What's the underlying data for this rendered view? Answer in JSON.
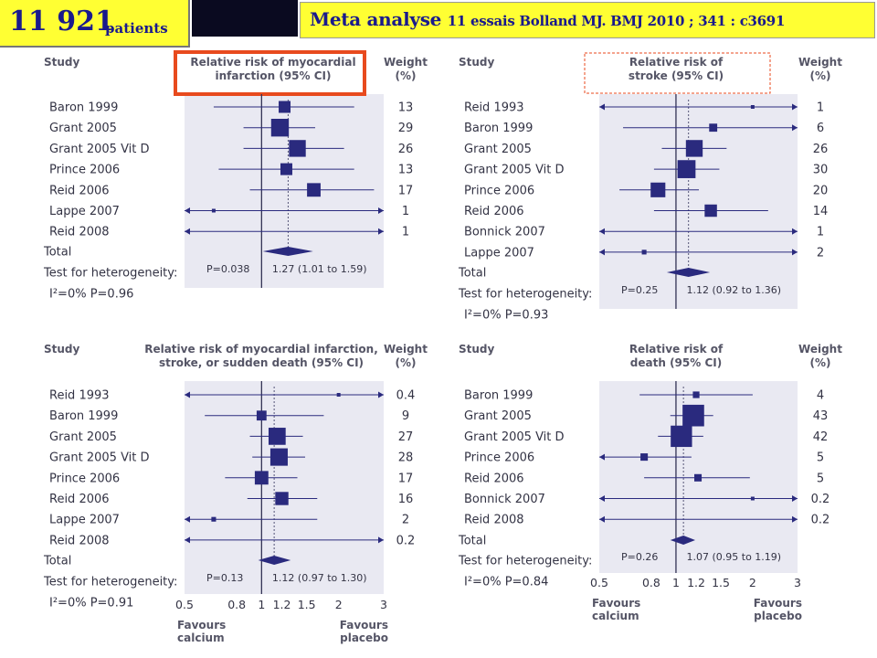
{
  "header": {
    "patient_count": "11 921",
    "patient_label": "patients",
    "reference_main": "Meta analyse",
    "reference_detail": "11 essais  Bolland MJ.   BMJ 2010 ; 341 : c3691"
  },
  "colors": {
    "marker": "#2a2a7e",
    "panel_bg": "#e9e9f2",
    "highlight_red": "#e84a1e",
    "header_yellow": "#ffff33",
    "header_text": "#1a1a8c"
  },
  "chart_data": [
    {
      "type": "forest",
      "study_header": "Study",
      "title_line1": "Relative risk of myocardial",
      "title_line2": "infarction (95% CI)",
      "weight_header_line1": "Weight",
      "weight_header_line2": "(%)",
      "highlight": "solid-red",
      "studies": [
        {
          "name": "Baron 1999",
          "rr": 1.23,
          "lo": 0.65,
          "hi": 2.3,
          "weight": "13"
        },
        {
          "name": "Grant 2005",
          "rr": 1.18,
          "lo": 0.85,
          "hi": 1.62,
          "weight": "29"
        },
        {
          "name": "Grant 2005 Vit D",
          "rr": 1.38,
          "lo": 0.85,
          "hi": 2.1,
          "weight": "26"
        },
        {
          "name": "Prince 2006",
          "rr": 1.25,
          "lo": 0.68,
          "hi": 2.3,
          "weight": "13"
        },
        {
          "name": "Reid 2006",
          "rr": 1.6,
          "lo": 0.9,
          "hi": 2.75,
          "weight": "17"
        },
        {
          "name": "Lappe 2007",
          "rr": 0.65,
          "lo": 0.5,
          "hi": 3.0,
          "weight": "1",
          "arrow_left": true,
          "arrow_right": true
        },
        {
          "name": "Reid 2008",
          "rr": null,
          "lo": 0.5,
          "hi": 3.0,
          "weight": "1",
          "arrow_left": true,
          "arrow_right": true
        }
      ],
      "total": {
        "rr": 1.27,
        "lo": 1.01,
        "hi": 1.59
      },
      "total_label": "Total",
      "heterogeneity_label": "Test for heterogeneity:",
      "i2": "I²=0% P=0.96",
      "p_overall": "P=0.038",
      "estimate_text": "1.27 (1.01 to 1.59)",
      "xscale": "log",
      "xlim": [
        0.5,
        3
      ]
    },
    {
      "type": "forest",
      "study_header": "Study",
      "title_line1": "Relative risk of",
      "title_line2": "stroke (95% CI)",
      "weight_header_line1": "Weight",
      "weight_header_line2": "(%)",
      "highlight": "dashed-red",
      "studies": [
        {
          "name": "Reid 1993",
          "rr": 2.0,
          "lo": 0.5,
          "hi": 3.0,
          "weight": "1",
          "arrow_left": true,
          "arrow_right": true
        },
        {
          "name": "Baron 1999",
          "rr": 1.4,
          "lo": 0.62,
          "hi": 3.0,
          "weight": "6",
          "arrow_right": true
        },
        {
          "name": "Grant 2005",
          "rr": 1.18,
          "lo": 0.88,
          "hi": 1.58,
          "weight": "26"
        },
        {
          "name": "Grant 2005 Vit D",
          "rr": 1.1,
          "lo": 0.82,
          "hi": 1.48,
          "weight": "30"
        },
        {
          "name": "Prince 2006",
          "rr": 0.85,
          "lo": 0.6,
          "hi": 1.23,
          "weight": "20"
        },
        {
          "name": "Reid 2006",
          "rr": 1.37,
          "lo": 0.82,
          "hi": 2.3,
          "weight": "14"
        },
        {
          "name": "Bonnick 2007",
          "rr": null,
          "lo": 0.5,
          "hi": 3.0,
          "weight": "1",
          "arrow_left": true,
          "arrow_right": true
        },
        {
          "name": "Lappe 2007",
          "rr": 0.75,
          "lo": 0.5,
          "hi": 3.0,
          "weight": "2",
          "arrow_left": true,
          "arrow_right": true
        }
      ],
      "total": {
        "rr": 1.12,
        "lo": 0.92,
        "hi": 1.36
      },
      "total_label": "Total",
      "heterogeneity_label": "Test for heterogeneity:",
      "i2": "I²=0% P=0.93",
      "p_overall": "P=0.25",
      "estimate_text": "1.12 (0.92 to 1.36)",
      "xscale": "log",
      "xlim": [
        0.5,
        3
      ]
    },
    {
      "type": "forest",
      "study_header": "Study",
      "title_line1": "Relative risk of myocardial infarction,",
      "title_line2": "stroke, or sudden death (95% CI)",
      "weight_header_line1": "Weight",
      "weight_header_line2": "(%)",
      "highlight": "none",
      "studies": [
        {
          "name": "Reid 1993",
          "rr": 2.0,
          "lo": 0.5,
          "hi": 3.0,
          "weight": "0.4",
          "arrow_left": true,
          "arrow_right": true
        },
        {
          "name": "Baron 1999",
          "rr": 1.0,
          "lo": 0.6,
          "hi": 1.75,
          "weight": "9"
        },
        {
          "name": "Grant 2005",
          "rr": 1.15,
          "lo": 0.9,
          "hi": 1.45,
          "weight": "27"
        },
        {
          "name": "Grant 2005 Vit D",
          "rr": 1.17,
          "lo": 0.92,
          "hi": 1.48,
          "weight": "28"
        },
        {
          "name": "Prince 2006",
          "rr": 1.0,
          "lo": 0.72,
          "hi": 1.38,
          "weight": "17"
        },
        {
          "name": "Reid 2006",
          "rr": 1.2,
          "lo": 0.88,
          "hi": 1.65,
          "weight": "16"
        },
        {
          "name": "Lappe 2007",
          "rr": 0.65,
          "lo": 0.5,
          "hi": 1.65,
          "weight": "2",
          "arrow_left": true
        },
        {
          "name": "Reid 2008",
          "rr": null,
          "lo": 0.5,
          "hi": 3.0,
          "weight": "0.2",
          "arrow_left": true,
          "arrow_right": true
        }
      ],
      "total": {
        "rr": 1.12,
        "lo": 0.97,
        "hi": 1.3
      },
      "total_label": "Total",
      "heterogeneity_label": "Test for heterogeneity:",
      "i2": "I²=0% P=0.91",
      "p_overall": "P=0.13",
      "estimate_text": "1.12 (0.97 to 1.30)",
      "xscale": "log",
      "xlim": [
        0.5,
        3
      ],
      "ticks": [
        "0.5",
        "0.8",
        "1",
        "1.2",
        "1.5",
        "2",
        "3"
      ],
      "tick_values": [
        0.5,
        0.8,
        1,
        1.2,
        1.5,
        2,
        3
      ],
      "favours_left": [
        "Favours",
        "calcium"
      ],
      "favours_right": [
        "Favours",
        "placebo"
      ]
    },
    {
      "type": "forest",
      "study_header": "Study",
      "title_line1": "Relative risk of",
      "title_line2": "death (95% CI)",
      "weight_header_line1": "Weight",
      "weight_header_line2": "(%)",
      "highlight": "none",
      "studies": [
        {
          "name": "Baron 1999",
          "rr": 1.2,
          "lo": 0.72,
          "hi": 2.0,
          "weight": "4"
        },
        {
          "name": "Grant 2005",
          "rr": 1.17,
          "lo": 0.95,
          "hi": 1.4,
          "weight": "43"
        },
        {
          "name": "Grant 2005 Vit D",
          "rr": 1.05,
          "lo": 0.85,
          "hi": 1.28,
          "weight": "42"
        },
        {
          "name": "Prince 2006",
          "rr": 0.75,
          "lo": 0.5,
          "hi": 1.15,
          "weight": "5",
          "arrow_left": true
        },
        {
          "name": "Reid 2006",
          "rr": 1.22,
          "lo": 0.75,
          "hi": 1.95,
          "weight": "5"
        },
        {
          "name": "Bonnick 2007",
          "rr": 2.0,
          "lo": 0.5,
          "hi": 3.0,
          "weight": "0.2",
          "arrow_left": true,
          "arrow_right": true
        },
        {
          "name": "Reid 2008",
          "rr": null,
          "lo": 0.5,
          "hi": 3.0,
          "weight": "0.2",
          "arrow_left": true,
          "arrow_right": true
        }
      ],
      "total": {
        "rr": 1.07,
        "lo": 0.95,
        "hi": 1.19
      },
      "total_label": "Total",
      "heterogeneity_label": "Test for heterogeneity:",
      "i2": "I²=0% P=0.84",
      "p_overall": "P=0.26",
      "estimate_text": "1.07 (0.95 to 1.19)",
      "xscale": "log",
      "xlim": [
        0.5,
        3
      ],
      "ticks": [
        "0.5",
        "0.8",
        "1",
        "1.2",
        "1.5",
        "2",
        "3"
      ],
      "tick_values": [
        0.5,
        0.8,
        1,
        1.2,
        1.5,
        2,
        3
      ],
      "favours_left": [
        "Favours",
        "calcium"
      ],
      "favours_right": [
        "Favours",
        "placebo"
      ]
    }
  ]
}
